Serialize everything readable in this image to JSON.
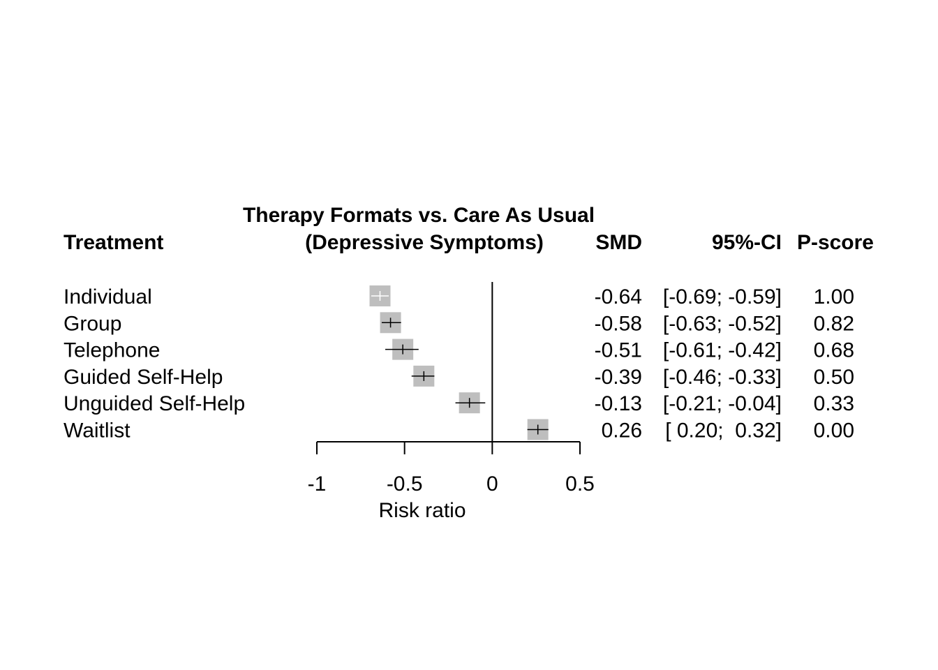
{
  "chart_data": {
    "type": "forest",
    "title": [
      "Therapy Formats vs. Care As Usual",
      "(Depressive Symptoms)"
    ],
    "xlabel": "Risk ratio",
    "xlim": [
      -1,
      0.5
    ],
    "xticks": [
      -1,
      -0.5,
      0,
      0.5
    ],
    "xtick_labels": [
      "-1",
      "-0.5",
      "0",
      "0.5"
    ],
    "reference_line": 0,
    "columns": {
      "treatment": "Treatment",
      "smd": "SMD",
      "ci": "95%-CI",
      "pscore": "P-score"
    },
    "rows": [
      {
        "treatment": "Individual",
        "smd": -0.64,
        "lower": -0.69,
        "upper": -0.59,
        "pscore": 1.0,
        "smd_text": "-0.64",
        "ci_text": "[-0.69; -0.59]",
        "pscore_text": "1.00"
      },
      {
        "treatment": "Group",
        "smd": -0.58,
        "lower": -0.63,
        "upper": -0.52,
        "pscore": 0.82,
        "smd_text": "-0.58",
        "ci_text": "[-0.63; -0.52]",
        "pscore_text": "0.82"
      },
      {
        "treatment": "Telephone",
        "smd": -0.51,
        "lower": -0.61,
        "upper": -0.42,
        "pscore": 0.68,
        "smd_text": "-0.51",
        "ci_text": "[-0.61; -0.42]",
        "pscore_text": "0.68"
      },
      {
        "treatment": "Guided Self-Help",
        "smd": -0.39,
        "lower": -0.46,
        "upper": -0.33,
        "pscore": 0.5,
        "smd_text": "-0.39",
        "ci_text": "[-0.46; -0.33]",
        "pscore_text": "0.50"
      },
      {
        "treatment": "Unguided Self-Help",
        "smd": -0.13,
        "lower": -0.21,
        "upper": -0.04,
        "pscore": 0.33,
        "smd_text": "-0.13",
        "ci_text": "[-0.21; -0.04]",
        "pscore_text": "0.33"
      },
      {
        "treatment": "Waitlist",
        "smd": 0.26,
        "lower": 0.2,
        "upper": 0.32,
        "pscore": 0.0,
        "smd_text": "0.26",
        "ci_text": "[ 0.20;  0.32]",
        "pscore_text": "0.00"
      }
    ],
    "colors": {
      "square": "#bebebe",
      "line_inside": "#ffffff",
      "line": "#000000",
      "axis": "#000000"
    }
  }
}
